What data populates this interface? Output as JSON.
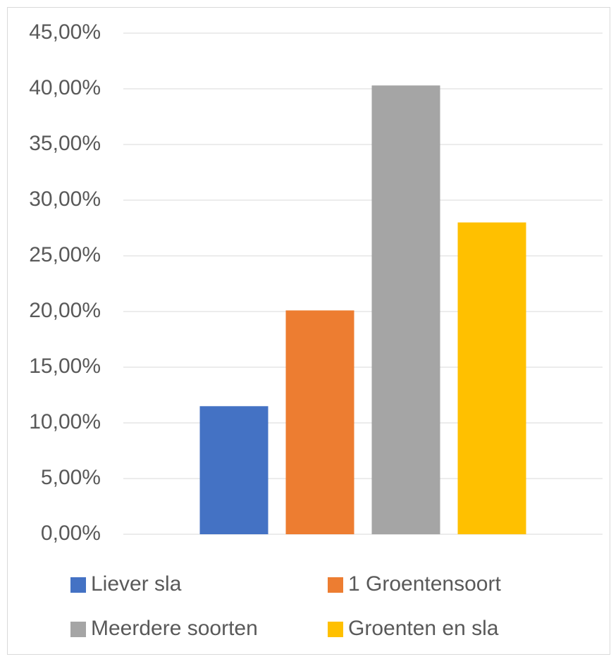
{
  "chart_data": {
    "type": "bar",
    "series": [
      {
        "name": "Liever sla",
        "color": "#4472c4",
        "values": [
          11.5
        ]
      },
      {
        "name": "1 Groentensoort",
        "color": "#ed7d31",
        "values": [
          20.1
        ]
      },
      {
        "name": "Meerdere soorten",
        "color": "#a5a5a5",
        "values": [
          40.3
        ]
      },
      {
        "name": "Groenten en sla",
        "color": "#ffc000",
        "values": [
          28.0
        ]
      }
    ],
    "ylim": [
      0,
      45
    ],
    "yticks": [
      {
        "value": 0,
        "label": "0,00%"
      },
      {
        "value": 5,
        "label": "5,00%"
      },
      {
        "value": 10,
        "label": "10,00%"
      },
      {
        "value": 15,
        "label": "15,00%"
      },
      {
        "value": 20,
        "label": "20,00%"
      },
      {
        "value": 25,
        "label": "25,00%"
      },
      {
        "value": 30,
        "label": "30,00%"
      },
      {
        "value": 35,
        "label": "35,00%"
      },
      {
        "value": 40,
        "label": "40,00%"
      },
      {
        "value": 45,
        "label": "45,00%"
      }
    ],
    "grid": true,
    "legend": "bottom"
  }
}
